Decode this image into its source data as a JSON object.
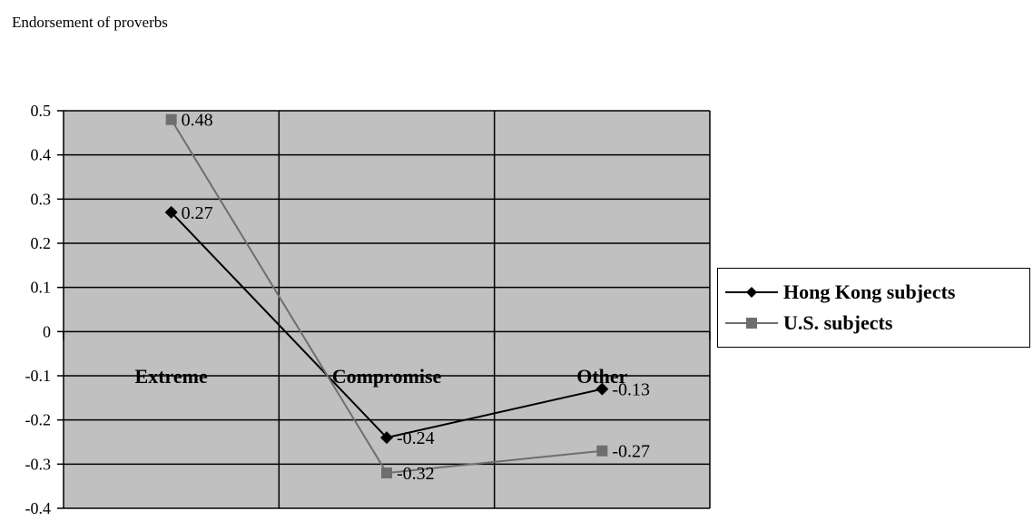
{
  "chart_data": {
    "type": "line",
    "ylabel": "Endorsement of proverbs",
    "categories": [
      "Extreme",
      "Compromise",
      "Other"
    ],
    "ylim": [
      -0.4,
      0.5
    ],
    "yticks": [
      "0.5",
      "0.4",
      "0.3",
      "0.2",
      "0.1",
      "0",
      "-0.1",
      "-0.2",
      "-0.3",
      "-0.4"
    ],
    "ytick_values": [
      0.5,
      0.4,
      0.3,
      0.2,
      0.1,
      0,
      -0.1,
      -0.2,
      -0.3,
      -0.4
    ],
    "grid": true,
    "legend_position": "right",
    "series": [
      {
        "name": "Hong Kong subjects",
        "values": [
          0.27,
          -0.24,
          -0.13
        ],
        "labels": [
          "0.27",
          "-0.24",
          "-0.13"
        ],
        "marker": "diamond",
        "color": "#000000"
      },
      {
        "name": "U.S. subjects",
        "values": [
          0.48,
          -0.32,
          -0.27
        ],
        "labels": [
          "0.48",
          "-0.32",
          "-0.27"
        ],
        "marker": "square",
        "color": "#6e6e6e"
      }
    ],
    "plot_background": "#c0c0c0"
  }
}
